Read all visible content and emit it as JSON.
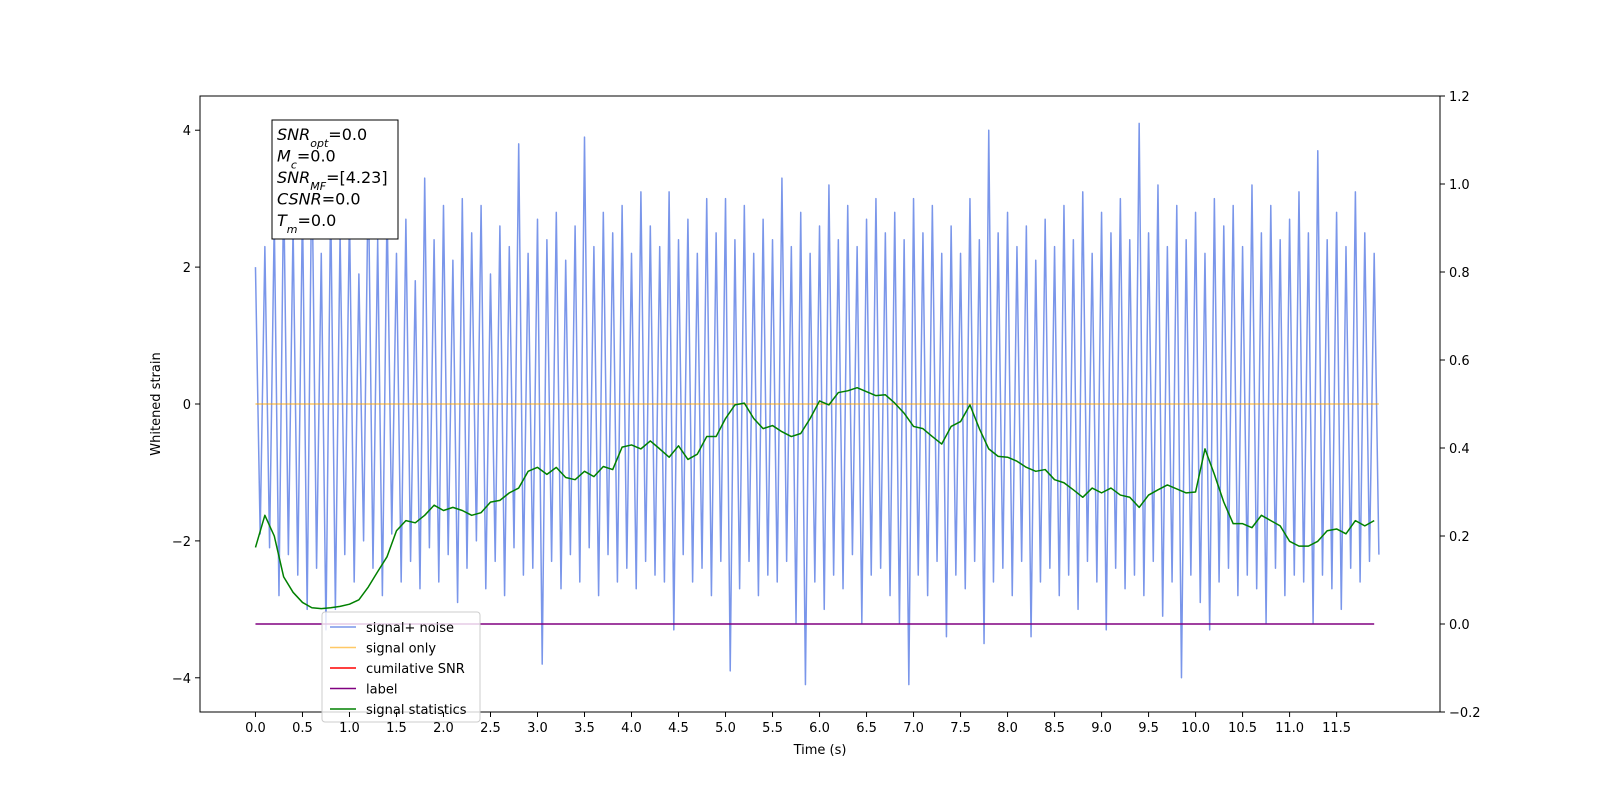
{
  "chart_data": {
    "type": "line",
    "xlabel": "Time (s)",
    "ylabel": "Whitened strain",
    "xlim": [
      -0.59,
      12.6
    ],
    "ylim": [
      -4.5,
      4.5
    ],
    "y2lim": [
      -0.2,
      1.2
    ],
    "xticks": [
      {
        "value": 0,
        "label": "0.0"
      },
      0.5,
      {
        "value": 1,
        "label": "1.0"
      },
      1.5,
      {
        "value": 2,
        "label": "2.0"
      },
      2.5,
      {
        "value": 3,
        "label": "3.0"
      },
      3.5,
      {
        "value": 4,
        "label": "4.0"
      },
      4.5,
      {
        "value": 5,
        "label": "5.0"
      },
      5.5,
      {
        "value": 6,
        "label": "6.0"
      },
      6.5,
      {
        "value": 7,
        "label": "7.0"
      },
      7.5,
      {
        "value": 8,
        "label": "8.0"
      },
      8.5,
      {
        "value": 9,
        "label": "9.0"
      },
      9.5,
      {
        "value": 10,
        "label": "10.0"
      },
      10.5,
      {
        "value": 11,
        "label": "11.0"
      },
      11.5
    ],
    "yticks": [
      {
        "value": -4,
        "label": "−4"
      },
      {
        "value": -2,
        "label": "−2"
      },
      0,
      2,
      4
    ],
    "y2ticks": [
      {
        "value": -0.2,
        "label": "−0.2"
      },
      {
        "value": 0,
        "label": "0.0"
      },
      0.2,
      0.4,
      0.6,
      0.8,
      {
        "value": 1,
        "label": "1.0"
      },
      1.2
    ],
    "annotation": [
      {
        "name": "SNR",
        "sub": "opt",
        "text": "=0.0"
      },
      {
        "name": "M",
        "sub": "c",
        "text": "=0.0"
      },
      {
        "name": "SNR",
        "sub": "MF",
        "text": "=[4.23]"
      },
      {
        "name": "CSNR",
        "sub": "",
        "text": "=0.0"
      },
      {
        "name": "T",
        "sub": "m",
        "text": "=0.0"
      }
    ],
    "series": [
      {
        "name": "signal+ noise",
        "color": "#4169e1",
        "opacity": 0.7,
        "axis": "y",
        "x": [
          0,
          0.05,
          0.1,
          0.15,
          0.2,
          0.25,
          0.3,
          0.35,
          0.4,
          0.45,
          0.5,
          0.55,
          0.6,
          0.65,
          0.7,
          0.75,
          0.8,
          0.85,
          0.9,
          0.95,
          1,
          1.05,
          1.1,
          1.15,
          1.2,
          1.25,
          1.3,
          1.35,
          1.4,
          1.45,
          1.5,
          1.55,
          1.6,
          1.65,
          1.7,
          1.75,
          1.8,
          1.85,
          1.9,
          1.95,
          2,
          2.05,
          2.1,
          2.15,
          2.2,
          2.25,
          2.3,
          2.35,
          2.4,
          2.45,
          2.5,
          2.55,
          2.6,
          2.65,
          2.7,
          2.75,
          2.8,
          2.85,
          2.9,
          2.95,
          3,
          3.05,
          3.1,
          3.15,
          3.2,
          3.25,
          3.3,
          3.35,
          3.4,
          3.45,
          3.5,
          3.55,
          3.6,
          3.65,
          3.7,
          3.75,
          3.8,
          3.85,
          3.9,
          3.95,
          4,
          4.05,
          4.1,
          4.15,
          4.2,
          4.25,
          4.3,
          4.35,
          4.4,
          4.45,
          4.5,
          4.55,
          4.6,
          4.65,
          4.7,
          4.75,
          4.8,
          4.85,
          4.9,
          4.95,
          5,
          5.05,
          5.1,
          5.15,
          5.2,
          5.25,
          5.3,
          5.35,
          5.4,
          5.45,
          5.5,
          5.55,
          5.6,
          5.65,
          5.7,
          5.75,
          5.8,
          5.85,
          5.9,
          5.95,
          6,
          6.05,
          6.1,
          6.15,
          6.2,
          6.25,
          6.3,
          6.35,
          6.4,
          6.45,
          6.5,
          6.55,
          6.6,
          6.65,
          6.7,
          6.75,
          6.8,
          6.85,
          6.9,
          6.95,
          7,
          7.05,
          7.1,
          7.15,
          7.2,
          7.25,
          7.3,
          7.35,
          7.4,
          7.45,
          7.5,
          7.55,
          7.6,
          7.65,
          7.7,
          7.75,
          7.8,
          7.85,
          7.9,
          7.95,
          8,
          8.05,
          8.1,
          8.15,
          8.2,
          8.25,
          8.3,
          8.35,
          8.4,
          8.45,
          8.5,
          8.55,
          8.6,
          8.65,
          8.7,
          8.75,
          8.8,
          8.85,
          8.9,
          8.95,
          9,
          9.05,
          9.1,
          9.15,
          9.2,
          9.25,
          9.3,
          9.35,
          9.4,
          9.45,
          9.5,
          9.55,
          9.6,
          9.65,
          9.7,
          9.75,
          9.8,
          9.85,
          9.9,
          9.95,
          10,
          10.05,
          10.1,
          10.15,
          10.2,
          10.25,
          10.3,
          10.35,
          10.4,
          10.45,
          10.5,
          10.55,
          10.6,
          10.65,
          10.7,
          10.75,
          10.8,
          10.85,
          10.9,
          10.95,
          11,
          11.05,
          11.1,
          11.15,
          11.2,
          11.25,
          11.3,
          11.35,
          11.4,
          11.45,
          11.5,
          11.55,
          11.6,
          11.65,
          11.7,
          11.75,
          11.8,
          11.85,
          11.9,
          11.95
        ],
        "values": [
          2.0,
          -1.9,
          2.3,
          -2.1,
          2.7,
          -2.8,
          3.2,
          -2.2,
          2.6,
          -2.5,
          2.9,
          -3.0,
          3.6,
          -2.4,
          2.2,
          -3.3,
          3.0,
          -3.0,
          2.5,
          -2.2,
          2.8,
          -2.6,
          1.9,
          -2.0,
          3.4,
          -2.4,
          2.4,
          -2.8,
          2.9,
          -1.9,
          2.2,
          -2.6,
          2.7,
          -2.3,
          1.8,
          -2.7,
          3.3,
          -2.1,
          2.4,
          -2.6,
          2.9,
          -2.2,
          2.1,
          -2.9,
          3.0,
          -2.4,
          2.5,
          -2.0,
          2.9,
          -2.7,
          1.9,
          -2.3,
          2.6,
          -2.8,
          2.3,
          -2.1,
          3.8,
          -2.5,
          2.2,
          -2.4,
          2.7,
          -3.8,
          2.4,
          -2.3,
          2.8,
          -2.7,
          2.1,
          -2.2,
          2.6,
          -2.6,
          3.9,
          -2.1,
          2.3,
          -2.8,
          2.8,
          -2.2,
          2.5,
          -2.6,
          2.9,
          -2.4,
          2.2,
          -2.7,
          3.1,
          -2.3,
          2.6,
          -2.5,
          2.3,
          -2.6,
          3.1,
          -3.3,
          2.4,
          -2.2,
          2.7,
          -2.6,
          2.2,
          -2.4,
          3.0,
          -2.8,
          2.5,
          -2.3,
          3.0,
          -3.9,
          2.4,
          -2.7,
          2.9,
          -2.3,
          2.2,
          -2.8,
          2.7,
          -2.5,
          2.4,
          -2.6,
          3.3,
          -2.3,
          2.3,
          -3.2,
          2.8,
          -4.1,
          2.2,
          -2.6,
          2.6,
          -3.0,
          3.2,
          -2.5,
          2.4,
          -2.7,
          2.9,
          -2.2,
          2.3,
          -3.2,
          2.7,
          -2.5,
          3.0,
          -2.4,
          2.5,
          -2.8,
          2.8,
          -3.2,
          2.4,
          -4.1,
          3.0,
          -2.5,
          2.5,
          -2.8,
          2.9,
          -2.3,
          2.2,
          -3.4,
          2.6,
          -2.5,
          2.2,
          -2.7,
          3.0,
          -2.3,
          2.4,
          -3.5,
          4.0,
          -2.6,
          2.5,
          -2.4,
          2.8,
          -2.8,
          2.3,
          -2.3,
          2.6,
          -3.4,
          2.1,
          -2.6,
          2.7,
          -2.4,
          2.3,
          -2.8,
          2.9,
          -2.5,
          2.4,
          -3.0,
          3.1,
          -2.3,
          2.2,
          -2.6,
          2.8,
          -3.3,
          2.5,
          -2.4,
          3.0,
          -2.7,
          2.4,
          -2.5,
          4.1,
          -2.8,
          2.5,
          -2.3,
          3.2,
          -3.1,
          2.3,
          -2.6,
          2.9,
          -4.0,
          2.4,
          -2.5,
          2.8,
          -2.9,
          2.2,
          -3.3,
          3.0,
          -2.6,
          2.6,
          -2.4,
          2.9,
          -2.8,
          2.3,
          -2.5,
          3.2,
          -2.7,
          2.5,
          -3.2,
          2.9,
          -2.4,
          2.4,
          -2.8,
          2.7,
          -2.5,
          3.1,
          -2.6,
          2.5,
          -3.2,
          3.7,
          -2.5,
          2.4,
          -2.7,
          2.8,
          -3.0,
          2.3,
          -2.4,
          3.1,
          -2.6,
          2.5,
          -2.3,
          2.2,
          -2.2
        ]
      },
      {
        "name": "signal only",
        "color": "#ffa500",
        "opacity": 0.6,
        "axis": "y",
        "x": [
          0,
          11.95
        ],
        "values": [
          0,
          0
        ]
      },
      {
        "name": "cumilative SNR",
        "color": "#ff0000",
        "opacity": 1,
        "axis": "y2",
        "x": [],
        "values": []
      },
      {
        "name": "label",
        "color": "#800080",
        "opacity": 1,
        "axis": "y2",
        "x": [
          0,
          11.9
        ],
        "values": [
          0,
          0
        ]
      },
      {
        "name": "signal statistics",
        "color": "#008000",
        "opacity": 1,
        "axis": "y2",
        "x": [
          0,
          0.1,
          0.2,
          0.3,
          0.4,
          0.5,
          0.6,
          0.7,
          0.8,
          0.9,
          1,
          1.1,
          1.2,
          1.3,
          1.4,
          1.5,
          1.6,
          1.7,
          1.8,
          1.9,
          2,
          2.1,
          2.2,
          2.3,
          2.4,
          2.5,
          2.6,
          2.7,
          2.8,
          2.9,
          3,
          3.1,
          3.2,
          3.3,
          3.4,
          3.5,
          3.6,
          3.7,
          3.8,
          3.9,
          4,
          4.1,
          4.2,
          4.3,
          4.4,
          4.5,
          4.6,
          4.7,
          4.8,
          4.9,
          5,
          5.1,
          5.2,
          5.3,
          5.4,
          5.5,
          5.6,
          5.7,
          5.8,
          5.9,
          6,
          6.1,
          6.2,
          6.3,
          6.4,
          6.5,
          6.6,
          6.7,
          6.8,
          6.9,
          7,
          7.1,
          7.2,
          7.3,
          7.4,
          7.5,
          7.6,
          7.7,
          7.8,
          7.9,
          8,
          8.1,
          8.2,
          8.3,
          8.4,
          8.5,
          8.6,
          8.7,
          8.8,
          8.9,
          9,
          9.1,
          9.2,
          9.3,
          9.4,
          9.5,
          9.6,
          9.7,
          9.8,
          9.9,
          10,
          10.1,
          10.2,
          10.3,
          10.4,
          10.5,
          10.6,
          10.7,
          10.8,
          10.9,
          11,
          11.1,
          11.2,
          11.3,
          11.4,
          11.5,
          11.6,
          11.7,
          11.8,
          11.9
        ],
        "values": [
          0.174,
          0.247,
          0.2,
          0.107,
          0.072,
          0.049,
          0.037,
          0.035,
          0.037,
          0.04,
          0.045,
          0.055,
          0.084,
          0.119,
          0.153,
          0.212,
          0.235,
          0.23,
          0.247,
          0.27,
          0.258,
          0.265,
          0.258,
          0.247,
          0.253,
          0.277,
          0.281,
          0.298,
          0.309,
          0.347,
          0.356,
          0.34,
          0.356,
          0.333,
          0.328,
          0.347,
          0.335,
          0.358,
          0.351,
          0.402,
          0.407,
          0.398,
          0.416,
          0.398,
          0.379,
          0.405,
          0.374,
          0.386,
          0.426,
          0.426,
          0.467,
          0.498,
          0.502,
          0.467,
          0.444,
          0.451,
          0.437,
          0.426,
          0.433,
          0.467,
          0.507,
          0.498,
          0.526,
          0.53,
          0.537,
          0.528,
          0.519,
          0.521,
          0.502,
          0.479,
          0.449,
          0.444,
          0.426,
          0.409,
          0.449,
          0.46,
          0.498,
          0.444,
          0.398,
          0.381,
          0.379,
          0.37,
          0.356,
          0.347,
          0.351,
          0.328,
          0.321,
          0.305,
          0.288,
          0.309,
          0.298,
          0.309,
          0.293,
          0.288,
          0.265,
          0.293,
          0.305,
          0.316,
          0.307,
          0.298,
          0.3,
          0.398,
          0.34,
          0.277,
          0.228,
          0.228,
          0.219,
          0.247,
          0.235,
          0.223,
          0.188,
          0.177,
          0.177,
          0.188,
          0.212,
          0.216,
          0.205,
          0.235,
          0.223,
          0.235
        ]
      }
    ]
  }
}
